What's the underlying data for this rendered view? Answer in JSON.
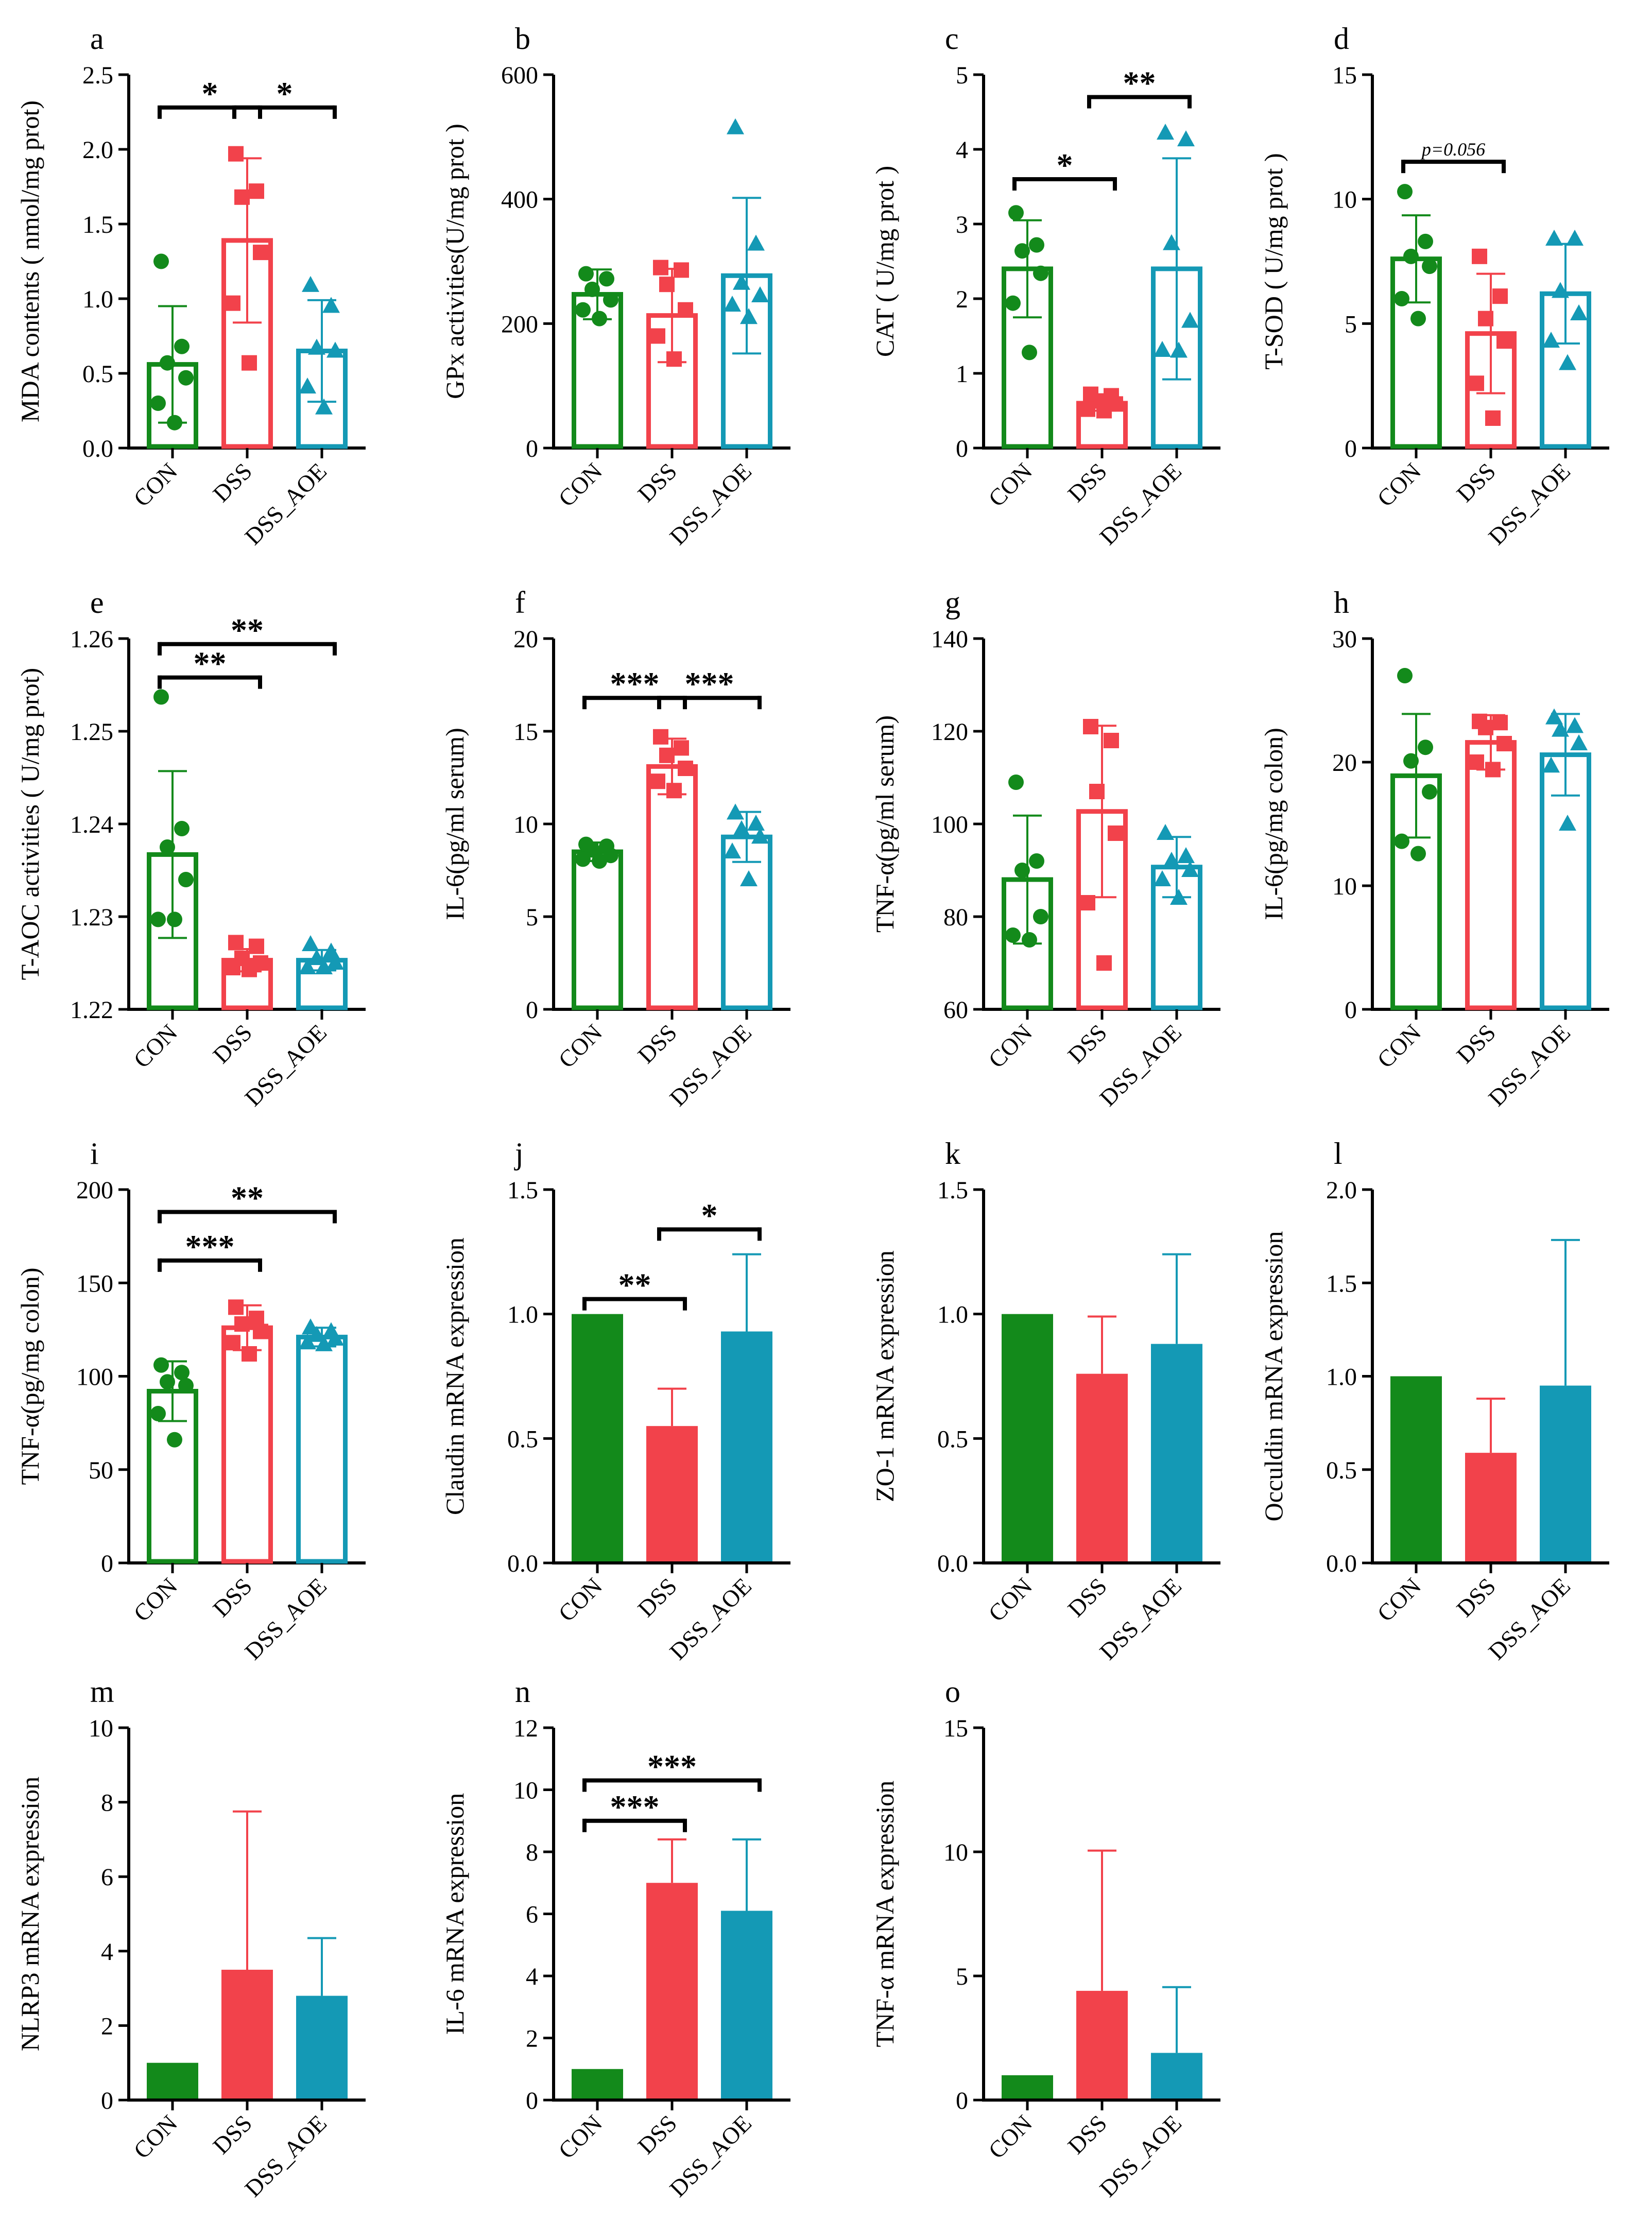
{
  "colors": {
    "CON": "#138A1B",
    "DSS": "#F2424B",
    "DSS_AOE": "#1499B5"
  },
  "categories": [
    "CON",
    "DSS",
    "DSS_AOE"
  ],
  "chart_data": [
    {
      "letter": "a",
      "type": "bar",
      "style": "hollow",
      "ylabel": "MDA contents ( nmol/mg prot)",
      "ylim": [
        0,
        2.5
      ],
      "ticks": [
        "0.0",
        "0.5",
        "1.0",
        "1.5",
        "2.0",
        "2.5"
      ],
      "categories": [
        "CON",
        "DSS",
        "DSS_AOE"
      ],
      "values": [
        0.56,
        1.39,
        0.65
      ],
      "errors": [
        0.39,
        0.55,
        0.34
      ],
      "points": [
        [
          1.25,
          0.68,
          0.57,
          0.47,
          0.3,
          0.17
        ],
        [
          1.97,
          1.72,
          1.68,
          1.31,
          0.97,
          0.57
        ],
        [
          1.09,
          0.95,
          0.67,
          0.65,
          0.41,
          0.27
        ]
      ],
      "sig": [
        {
          "from": 0,
          "to": 1,
          "label": "*",
          "level": 2.28
        },
        {
          "from": 1,
          "to": 2,
          "label": "*",
          "level": 2.28
        }
      ]
    },
    {
      "letter": "b",
      "type": "bar",
      "style": "hollow",
      "ylabel": "GPx activities(U/mg prot )",
      "ylim": [
        0,
        600
      ],
      "ticks": [
        "0",
        "200",
        "400",
        "600"
      ],
      "categories": [
        "CON",
        "DSS",
        "DSS_AOE"
      ],
      "values": [
        247,
        213,
        277
      ],
      "errors": [
        40,
        75,
        125
      ],
      "points": [
        [
          280,
          272,
          255,
          238,
          222,
          208
        ],
        [
          290,
          286,
          263,
          222,
          180,
          143
        ],
        [
          515,
          328,
          265,
          245,
          230,
          210
        ]
      ],
      "sig": []
    },
    {
      "letter": "c",
      "type": "bar",
      "style": "hollow",
      "ylabel": "CAT ( U/mg prot )",
      "ylim": [
        0,
        5
      ],
      "ticks": [
        "0",
        "1",
        "2",
        "3",
        "4",
        "5"
      ],
      "categories": [
        "CON",
        "DSS",
        "DSS_AOE"
      ],
      "values": [
        2.4,
        0.6,
        2.4
      ],
      "errors": [
        0.65,
        0.1,
        1.48
      ],
      "points": [
        [
          3.15,
          2.72,
          2.64,
          2.34,
          1.94,
          1.28
        ],
        [
          0.72,
          0.7,
          0.63,
          0.59,
          0.52,
          0.5
        ],
        [
          4.22,
          4.13,
          2.74,
          1.7,
          1.31,
          1.3
        ]
      ],
      "sig": [
        {
          "from": 0,
          "to": 1,
          "label": "*",
          "level": 3.6
        },
        {
          "from": 1,
          "to": 2,
          "label": "**",
          "level": 4.7
        }
      ]
    },
    {
      "letter": "d",
      "type": "bar",
      "style": "hollow",
      "ylabel": "T-SOD ( U/mg prot )",
      "ylim": [
        0,
        15
      ],
      "ticks": [
        "0",
        "5",
        "10",
        "15"
      ],
      "categories": [
        "CON",
        "DSS",
        "DSS_AOE"
      ],
      "values": [
        7.6,
        4.6,
        6.2
      ],
      "errors": [
        1.75,
        2.4,
        2.0
      ],
      "points": [
        [
          10.3,
          8.3,
          7.7,
          7.3,
          6.0,
          5.2
        ],
        [
          7.7,
          6.1,
          5.2,
          4.3,
          2.6,
          1.2
        ],
        [
          8.4,
          8.4,
          6.3,
          5.4,
          4.3,
          3.4
        ]
      ],
      "sig": [
        {
          "from": 0,
          "to": 1,
          "label": "p=0.056",
          "level": 11.5,
          "italic_p": true
        }
      ]
    },
    {
      "letter": "e",
      "type": "bar",
      "style": "hollow",
      "ylabel": "T-AOC activities ( U/mg prot)",
      "ylim": [
        1.22,
        1.26
      ],
      "ticks": [
        "1.22",
        "1.23",
        "1.24",
        "1.25",
        "1.26"
      ],
      "categories": [
        "CON",
        "DSS",
        "DSS_AOE"
      ],
      "values": [
        1.2367,
        1.2253,
        1.2253
      ],
      "errors": [
        0.009,
        0.0012,
        0.0011
      ],
      "points": [
        [
          1.2537,
          1.2395,
          1.2375,
          1.234,
          1.2297,
          1.2297
        ],
        [
          1.2272,
          1.2268,
          1.2255,
          1.225,
          1.2245,
          1.2243
        ],
        [
          1.227,
          1.2262,
          1.2255,
          1.225,
          1.2245,
          1.2245
        ]
      ],
      "sig": [
        {
          "from": 0,
          "to": 1,
          "label": "**",
          "level": 1.2558
        },
        {
          "from": 0,
          "to": 2,
          "label": "**",
          "level": 1.2594
        }
      ]
    },
    {
      "letter": "f",
      "type": "bar",
      "style": "hollow",
      "ylabel": "IL-6(pg/ml serum)",
      "ylim": [
        0,
        20
      ],
      "ticks": [
        "0",
        "5",
        "10",
        "15",
        "20"
      ],
      "categories": [
        "CON",
        "DSS",
        "DSS_AOE"
      ],
      "values": [
        8.5,
        13.1,
        9.3
      ],
      "errors": [
        0.5,
        1.5,
        1.35
      ],
      "points": [
        [
          8.9,
          8.8,
          8.6,
          8.3,
          8.1,
          8.0
        ],
        [
          14.7,
          14.1,
          13.7,
          13.0,
          12.3,
          11.8
        ],
        [
          10.6,
          10.0,
          9.7,
          9.3,
          8.5,
          7.0
        ]
      ],
      "sig": [
        {
          "from": 0,
          "to": 1,
          "label": "***",
          "level": 16.8
        },
        {
          "from": 1,
          "to": 2,
          "label": "***",
          "level": 16.8
        }
      ]
    },
    {
      "letter": "g",
      "type": "bar",
      "style": "hollow",
      "ylabel": "TNF-α(pg/ml serum)",
      "ylim": [
        60,
        140
      ],
      "ticks": [
        "60",
        "80",
        "100",
        "120",
        "140"
      ],
      "categories": [
        "CON",
        "DSS",
        "DSS_AOE"
      ],
      "values": [
        88,
        102.7,
        90.7
      ],
      "errors": [
        13.8,
        18.5,
        6.5
      ],
      "points": [
        [
          109,
          92,
          90,
          80,
          76,
          75
        ],
        [
          121,
          118,
          107,
          98,
          83,
          70
        ],
        [
          98,
          93,
          92,
          90,
          88,
          84
        ]
      ],
      "sig": []
    },
    {
      "letter": "h",
      "type": "bar",
      "style": "hollow",
      "ylabel": "IL-6(pg/mg colon)",
      "ylim": [
        0,
        30
      ],
      "ticks": [
        "0",
        "10",
        "20",
        "30"
      ],
      "categories": [
        "CON",
        "DSS",
        "DSS_AOE"
      ],
      "values": [
        18.9,
        21.6,
        20.6
      ],
      "errors": [
        5.0,
        2.2,
        3.3
      ],
      "points": [
        [
          27,
          21.2,
          20.1,
          17.6,
          13.6,
          12.6
        ],
        [
          23.3,
          23.2,
          22.8,
          21.5,
          20.0,
          19.4
        ],
        [
          23.6,
          22.9,
          22.6,
          21.5,
          19.7,
          15.0
        ]
      ],
      "sig": []
    },
    {
      "letter": "i",
      "type": "bar",
      "style": "hollow",
      "ylabel": "TNF-α(pg/mg colon)",
      "ylim": [
        0,
        200
      ],
      "ticks": [
        "0",
        "50",
        "100",
        "150",
        "200"
      ],
      "categories": [
        "CON",
        "DSS",
        "DSS_AOE"
      ],
      "values": [
        92,
        126,
        121
      ],
      "errors": [
        16,
        12,
        5
      ],
      "points": [
        [
          106,
          102,
          97,
          95,
          80,
          66
        ],
        [
          137,
          131,
          128,
          124,
          118,
          112
        ],
        [
          126,
          124,
          122,
          120,
          118,
          117
        ]
      ],
      "sig": [
        {
          "from": 0,
          "to": 1,
          "label": "***",
          "level": 162
        },
        {
          "from": 0,
          "to": 2,
          "label": "**",
          "level": 188
        }
      ]
    },
    {
      "letter": "j",
      "type": "bar",
      "style": "solid",
      "ylabel": "Claudin mRNA expression",
      "ylim": [
        0,
        1.5
      ],
      "ticks": [
        "0.0",
        "0.5",
        "1.0",
        "1.5"
      ],
      "categories": [
        "CON",
        "DSS",
        "DSS_AOE"
      ],
      "values": [
        1.0,
        0.55,
        0.93
      ],
      "errors": [
        0,
        0.15,
        0.31
      ],
      "sig": [
        {
          "from": 0,
          "to": 1,
          "label": "**",
          "level": 1.06
        },
        {
          "from": 1,
          "to": 2,
          "label": "*",
          "level": 1.34
        }
      ]
    },
    {
      "letter": "k",
      "type": "bar",
      "style": "solid",
      "ylabel": "ZO-1 mRNA expression",
      "ylim": [
        0,
        1.5
      ],
      "ticks": [
        "0.0",
        "0.5",
        "1.0",
        "1.5"
      ],
      "categories": [
        "CON",
        "DSS",
        "DSS_AOE"
      ],
      "values": [
        1.0,
        0.76,
        0.88
      ],
      "errors": [
        0,
        0.23,
        0.36
      ],
      "sig": []
    },
    {
      "letter": "l",
      "type": "bar",
      "style": "solid",
      "ylabel": "Occuldin mRNA expression",
      "ylim": [
        0,
        2.0
      ],
      "ticks": [
        "0.0",
        "0.5",
        "1.0",
        "1.5",
        "2.0"
      ],
      "categories": [
        "CON",
        "DSS",
        "DSS_AOE"
      ],
      "values": [
        1.0,
        0.59,
        0.95
      ],
      "errors": [
        0,
        0.29,
        0.78
      ],
      "sig": []
    },
    {
      "letter": "m",
      "type": "bar",
      "style": "solid",
      "ylabel": "NLRP3 mRNA expression",
      "ylim": [
        0,
        10
      ],
      "ticks": [
        "0",
        "2",
        "4",
        "6",
        "8",
        "10"
      ],
      "categories": [
        "CON",
        "DSS",
        "DSS_AOE"
      ],
      "values": [
        1.0,
        3.5,
        2.8
      ],
      "errors": [
        0,
        4.25,
        1.55
      ],
      "sig": []
    },
    {
      "letter": "n",
      "type": "bar",
      "style": "solid",
      "ylabel": "IL-6 mRNA expression",
      "ylim": [
        0,
        12
      ],
      "ticks": [
        "0",
        "2",
        "4",
        "6",
        "8",
        "10",
        "12"
      ],
      "categories": [
        "CON",
        "DSS",
        "DSS_AOE"
      ],
      "values": [
        1.0,
        7.0,
        6.1
      ],
      "errors": [
        0,
        1.4,
        2.3
      ],
      "sig": [
        {
          "from": 0,
          "to": 1,
          "label": "***",
          "level": 9.0
        },
        {
          "from": 0,
          "to": 2,
          "label": "***",
          "level": 10.3
        }
      ]
    },
    {
      "letter": "o",
      "type": "bar",
      "style": "solid",
      "ylabel": "TNF-α mRNA expression",
      "ylim": [
        0,
        15
      ],
      "ticks": [
        "0",
        "5",
        "10",
        "15"
      ],
      "categories": [
        "CON",
        "DSS",
        "DSS_AOE"
      ],
      "values": [
        1.0,
        4.4,
        1.9
      ],
      "errors": [
        0,
        5.65,
        2.65
      ],
      "sig": []
    }
  ]
}
